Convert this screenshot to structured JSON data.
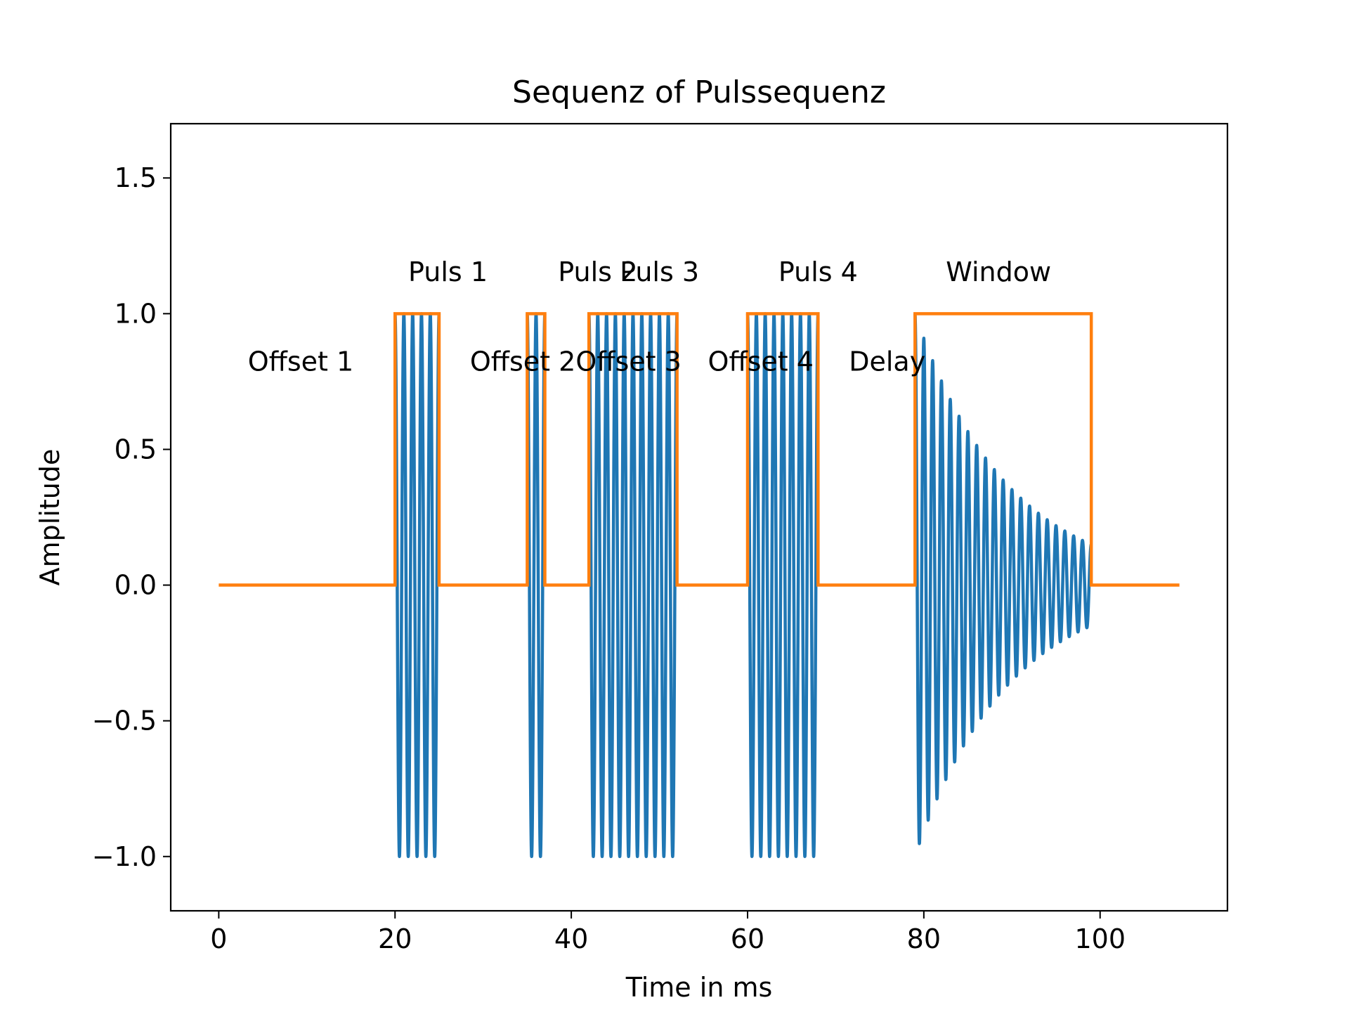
{
  "chart_data": {
    "type": "line",
    "title": "Sequenz of Pulssequenz",
    "xlabel": "Time in ms",
    "ylabel": "Amplitude",
    "xlim": [
      -5.45,
      114.45
    ],
    "ylim": [
      -1.2,
      1.7
    ],
    "xticks": [
      0,
      20,
      40,
      60,
      80,
      100
    ],
    "yticks": [
      -1.0,
      -0.5,
      0.0,
      0.5,
      1.0,
      1.5
    ],
    "xtick_labels": [
      "0",
      "20",
      "40",
      "60",
      "80",
      "100"
    ],
    "ytick_labels": [
      "−1.0",
      "−0.5",
      "0.0",
      "0.5",
      "1.0",
      "1.5"
    ],
    "grid": false,
    "series": [
      {
        "color": "#1f77b4",
        "style": "oscillation",
        "segments": [
          {
            "start": 20,
            "end": 25,
            "cycles": 5,
            "amplitude_start": 1.0,
            "amplitude_end": 1.0
          },
          {
            "start": 35,
            "end": 37,
            "cycles": 2,
            "amplitude_start": 1.0,
            "amplitude_end": 1.0
          },
          {
            "start": 42,
            "end": 52,
            "cycles": 10,
            "amplitude_start": 1.0,
            "amplitude_end": 1.0
          },
          {
            "start": 60,
            "end": 68,
            "cycles": 8,
            "amplitude_start": 1.0,
            "amplitude_end": 1.0
          },
          {
            "start": 79,
            "end": 99,
            "cycles": 20,
            "amplitude_start": 1.0,
            "amplitude_end": 0.15
          }
        ]
      },
      {
        "color": "#ff7f0e",
        "style": "gates",
        "x_start": 0,
        "x_end": 109,
        "gates": [
          [
            20,
            25
          ],
          [
            35,
            37
          ],
          [
            42,
            52
          ],
          [
            60,
            68
          ],
          [
            79,
            99
          ]
        ]
      }
    ],
    "annotations": [
      {
        "text": "Puls 1",
        "x": 21.5,
        "y": 1.12
      },
      {
        "text": "Puls 2",
        "x": 38.5,
        "y": 1.12
      },
      {
        "text": "Puls 3",
        "x": 45.5,
        "y": 1.12
      },
      {
        "text": "Puls 4",
        "x": 63.5,
        "y": 1.12
      },
      {
        "text": "Window",
        "x": 82.5,
        "y": 1.12
      },
      {
        "text": "Offset 1",
        "x": 3.3,
        "y": 0.79
      },
      {
        "text": "Offset 2",
        "x": 28.5,
        "y": 0.79
      },
      {
        "text": "Offset 3",
        "x": 40.5,
        "y": 0.79
      },
      {
        "text": "Offset 4",
        "x": 55.5,
        "y": 0.79
      },
      {
        "text": "Delay",
        "x": 71.5,
        "y": 0.79
      }
    ]
  }
}
